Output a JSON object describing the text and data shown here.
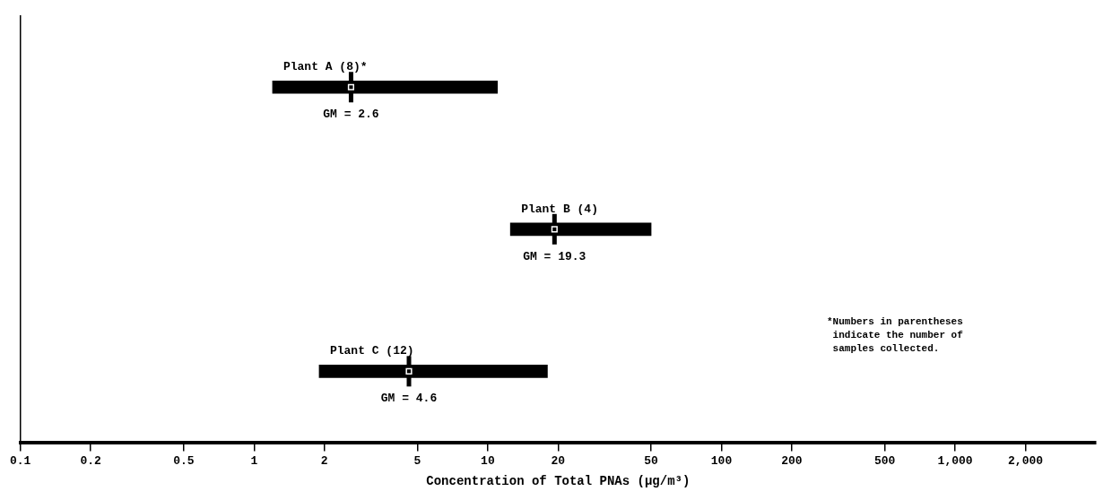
{
  "chart_data": {
    "type": "bar",
    "orientation": "horizontal",
    "tick_labels": "x",
    "grid": false,
    "legend": false,
    "xlabel": "Concentration of Total PNAs (μg/m³)",
    "categories": [
      "Plant A (8)*",
      "Plant B (4)",
      "Plant C (12)"
    ],
    "xlim": [
      0.1,
      4000
    ],
    "log": "x",
    "xticks": [
      0.1,
      0.2,
      0.5,
      1,
      2,
      5,
      10,
      20,
      50,
      100,
      200,
      500,
      {
        "value": 1000,
        "label": "1,000"
      },
      {
        "value": 2000,
        "label": "2,000"
      }
    ],
    "series": [
      {
        "type": "bar",
        "color": "#000000",
        "base": [
          1.2,
          12.5,
          1.9
        ],
        "values": [
          9.8,
          37.5,
          16.1
        ]
      },
      {
        "type": "scatter",
        "color": "#000000",
        "values": [
          2.6,
          19.3,
          4.6
        ],
        "value_labels": [
          "GM = 2.6",
          "GM = 19.3",
          "GM = 4.6"
        ]
      }
    ],
    "annotations": [
      "*Numbers in parentheses\n indicate the number of\n samples collected."
    ]
  }
}
